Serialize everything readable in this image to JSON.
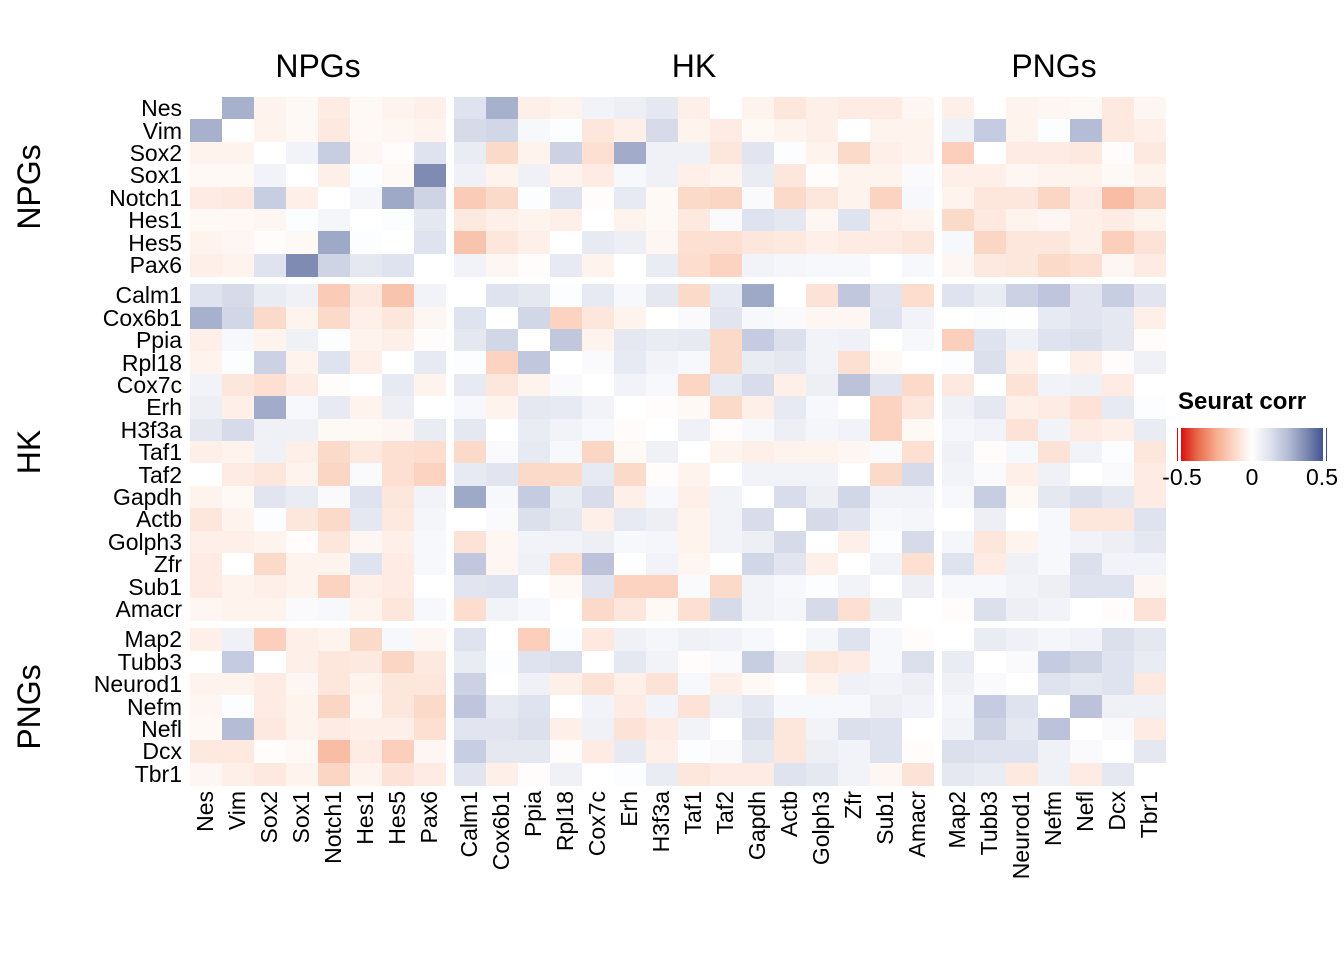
{
  "chart_data": {
    "type": "heatmap",
    "title": "",
    "genes": [
      "Nes",
      "Vim",
      "Sox2",
      "Sox1",
      "Notch1",
      "Hes1",
      "Hes5",
      "Pax6",
      "Calm1",
      "Cox6b1",
      "Ppia",
      "Rpl18",
      "Cox7c",
      "Erh",
      "H3f3a",
      "Taf1",
      "Taf2",
      "Gapdh",
      "Actb",
      "Golph3",
      "Zfr",
      "Sub1",
      "Amacr",
      "Map2",
      "Tubb3",
      "Neurod1",
      "Nefm",
      "Nefl",
      "Dcx",
      "Tbr1"
    ],
    "groups": [
      {
        "label": "NPGs",
        "count": 8
      },
      {
        "label": "HK",
        "count": 15
      },
      {
        "label": "PNGs",
        "count": 7
      }
    ],
    "legend": {
      "title": "Seurat corr",
      "ticks": [
        "-0.5",
        "0",
        "0.5"
      ],
      "tick_values": [
        -0.5,
        0,
        0.5
      ],
      "bar_range": [
        -0.52,
        0.52
      ]
    },
    "color_scale": {
      "anchors": [
        [
          -0.5,
          "#d8090d"
        ],
        [
          -0.375,
          "#e96c4c"
        ],
        [
          -0.25,
          "#f6ab8c"
        ],
        [
          -0.125,
          "#fcd8c7"
        ],
        [
          0,
          "#ffffff"
        ],
        [
          0.125,
          "#dee2ee"
        ],
        [
          0.25,
          "#b4bcd6"
        ],
        [
          0.375,
          "#7d89b0"
        ],
        [
          0.5,
          "#3e5090"
        ]
      ]
    },
    "matrix": [
      [
        0,
        0.28,
        -0.04,
        -0.02,
        -0.06,
        -0.02,
        -0.04,
        -0.05,
        0.12,
        0.28,
        -0.05,
        -0.04,
        0.05,
        0.07,
        0.1,
        -0.05,
        0.0,
        -0.04,
        -0.08,
        -0.05,
        -0.06,
        -0.06,
        -0.03,
        -0.05,
        0.0,
        -0.04,
        -0.03,
        -0.02,
        -0.07,
        -0.03
      ],
      [
        0.28,
        0,
        -0.04,
        -0.02,
        -0.07,
        -0.02,
        -0.03,
        -0.04,
        0.15,
        0.16,
        0.03,
        0.01,
        -0.08,
        -0.05,
        0.15,
        -0.04,
        -0.06,
        -0.02,
        -0.04,
        -0.05,
        0.0,
        -0.04,
        -0.04,
        0.06,
        0.2,
        -0.04,
        0.01,
        0.25,
        -0.07,
        -0.05
      ],
      [
        -0.04,
        -0.04,
        0,
        0.05,
        0.19,
        -0.03,
        -0.01,
        0.12,
        0.08,
        -0.12,
        -0.04,
        0.18,
        -0.1,
        0.29,
        0.06,
        0.06,
        -0.08,
        0.11,
        0.01,
        -0.04,
        -0.12,
        -0.05,
        -0.04,
        -0.15,
        0.0,
        -0.06,
        -0.06,
        -0.07,
        -0.01,
        -0.07
      ],
      [
        -0.02,
        -0.02,
        0.05,
        0,
        -0.05,
        0.01,
        -0.02,
        0.37,
        0.06,
        -0.04,
        0.06,
        -0.04,
        -0.06,
        0.03,
        0.06,
        -0.05,
        -0.04,
        0.08,
        -0.08,
        -0.01,
        -0.04,
        -0.04,
        0.02,
        -0.05,
        -0.05,
        -0.03,
        -0.04,
        -0.04,
        -0.02,
        -0.04
      ],
      [
        -0.06,
        -0.07,
        0.19,
        -0.05,
        0,
        0.04,
        0.3,
        0.17,
        -0.16,
        -0.12,
        0.01,
        0.12,
        -0.01,
        0.09,
        -0.02,
        -0.12,
        -0.13,
        0.02,
        -0.12,
        -0.08,
        -0.04,
        -0.14,
        0.03,
        -0.04,
        -0.08,
        -0.08,
        -0.13,
        -0.06,
        -0.2,
        -0.13
      ],
      [
        -0.02,
        -0.02,
        -0.03,
        0.01,
        0.04,
        0,
        0.01,
        0.1,
        -0.07,
        -0.05,
        -0.04,
        -0.05,
        0.0,
        -0.04,
        -0.02,
        -0.07,
        0.02,
        0.12,
        0.1,
        -0.03,
        0.12,
        -0.05,
        -0.04,
        -0.12,
        -0.07,
        -0.04,
        -0.03,
        -0.05,
        -0.06,
        -0.04
      ],
      [
        -0.04,
        -0.03,
        -0.01,
        -0.02,
        0.3,
        0.01,
        0,
        0.12,
        -0.18,
        -0.08,
        -0.05,
        0.0,
        0.09,
        0.07,
        -0.03,
        -0.1,
        -0.1,
        -0.08,
        -0.07,
        -0.05,
        -0.06,
        -0.06,
        -0.08,
        0.03,
        -0.13,
        -0.08,
        -0.08,
        -0.05,
        -0.15,
        -0.09
      ],
      [
        -0.05,
        -0.04,
        0.12,
        0.37,
        0.17,
        0.1,
        0.12,
        0,
        0.05,
        -0.03,
        -0.01,
        0.09,
        -0.04,
        0.0,
        0.08,
        -0.11,
        -0.14,
        0.05,
        0.04,
        0.03,
        0.03,
        0.0,
        0.03,
        -0.03,
        -0.07,
        -0.08,
        -0.12,
        -0.1,
        -0.03,
        -0.06
      ],
      [
        0.12,
        0.15,
        0.08,
        0.06,
        -0.16,
        -0.07,
        -0.18,
        0.05,
        0,
        0.12,
        0.1,
        0.01,
        0.09,
        0.03,
        0.1,
        -0.12,
        0.09,
        0.3,
        0.0,
        -0.09,
        0.21,
        0.11,
        -0.11,
        0.12,
        0.08,
        0.18,
        0.22,
        0.11,
        0.19,
        0.11
      ],
      [
        0.28,
        0.16,
        -0.12,
        -0.04,
        -0.12,
        -0.05,
        -0.08,
        -0.03,
        0.12,
        0,
        0.16,
        -0.14,
        -0.08,
        -0.04,
        0.0,
        0.02,
        0.11,
        0.03,
        0.02,
        -0.03,
        -0.03,
        0.12,
        0.05,
        0.0,
        0.01,
        0.0,
        0.09,
        0.11,
        0.1,
        -0.05
      ],
      [
        -0.05,
        0.03,
        -0.04,
        0.06,
        0.01,
        -0.04,
        -0.05,
        -0.01,
        0.1,
        0.16,
        0,
        0.21,
        -0.04,
        0.1,
        0.08,
        0.09,
        -0.12,
        0.2,
        0.13,
        0.05,
        0.06,
        0.0,
        0.03,
        -0.15,
        0.12,
        0.06,
        0.12,
        0.13,
        0.1,
        -0.01
      ],
      [
        -0.04,
        0.01,
        0.18,
        -0.04,
        0.12,
        -0.05,
        0.0,
        0.09,
        0.01,
        -0.14,
        0.21,
        0,
        0.02,
        0.09,
        0.05,
        0.03,
        -0.12,
        0.08,
        0.1,
        0.05,
        -0.1,
        -0.02,
        0.0,
        0.01,
        0.13,
        -0.05,
        0.0,
        -0.05,
        -0.01,
        0.06
      ],
      [
        0.05,
        -0.08,
        -0.1,
        -0.06,
        -0.01,
        0.0,
        0.09,
        -0.04,
        0.09,
        -0.08,
        -0.04,
        0.02,
        0,
        0.05,
        0.03,
        -0.13,
        0.09,
        0.14,
        -0.05,
        0.07,
        0.23,
        0.11,
        -0.12,
        -0.07,
        0.0,
        -0.09,
        0.05,
        0.06,
        -0.06,
        0.0
      ],
      [
        0.07,
        -0.05,
        0.29,
        0.03,
        0.09,
        -0.04,
        0.07,
        0.0,
        0.03,
        -0.04,
        0.1,
        0.09,
        0.05,
        0,
        -0.01,
        -0.02,
        -0.12,
        -0.05,
        0.09,
        0.03,
        0.0,
        -0.14,
        -0.08,
        0.06,
        0.1,
        -0.05,
        -0.06,
        -0.09,
        0.09,
        0.01
      ],
      [
        0.1,
        0.15,
        0.06,
        0.06,
        -0.02,
        -0.02,
        -0.03,
        0.08,
        0.1,
        0.0,
        0.08,
        0.05,
        0.03,
        -0.01,
        0,
        0.06,
        -0.01,
        0.03,
        0.07,
        0.04,
        0.05,
        -0.14,
        -0.02,
        0.04,
        0.05,
        -0.09,
        0.05,
        -0.06,
        -0.05,
        0.08
      ],
      [
        -0.05,
        -0.04,
        0.06,
        -0.05,
        -0.12,
        -0.07,
        -0.1,
        -0.11,
        -0.12,
        0.02,
        0.09,
        0.03,
        -0.13,
        -0.02,
        0.06,
        0,
        -0.04,
        -0.05,
        -0.04,
        -0.04,
        -0.03,
        0.02,
        -0.1,
        0.06,
        -0.01,
        0.03,
        -0.09,
        0.05,
        0.01,
        -0.08
      ],
      [
        0.0,
        -0.06,
        -0.08,
        -0.04,
        -0.13,
        0.02,
        -0.1,
        -0.14,
        0.09,
        0.11,
        -0.12,
        -0.12,
        0.09,
        -0.12,
        -0.01,
        -0.04,
        0,
        0.05,
        0.05,
        0.05,
        0.0,
        -0.12,
        0.15,
        0.05,
        0.02,
        -0.05,
        0.06,
        0.0,
        0.02,
        -0.06
      ],
      [
        -0.04,
        -0.02,
        0.11,
        0.08,
        0.02,
        0.12,
        -0.08,
        0.05,
        0.3,
        0.03,
        0.2,
        0.08,
        0.14,
        -0.05,
        0.03,
        -0.05,
        0.05,
        0,
        0.14,
        0.07,
        0.16,
        0.05,
        0.05,
        0.03,
        0.19,
        -0.02,
        0.1,
        0.13,
        0.1,
        -0.06
      ],
      [
        -0.08,
        -0.04,
        0.01,
        -0.08,
        -0.12,
        0.1,
        -0.07,
        0.04,
        0.0,
        0.02,
        0.13,
        0.1,
        -0.05,
        0.09,
        0.07,
        -0.04,
        0.05,
        0.14,
        0,
        0.15,
        0.11,
        0.03,
        0.04,
        0.0,
        0.07,
        0.0,
        0.03,
        -0.08,
        -0.08,
        0.12
      ],
      [
        -0.05,
        -0.05,
        -0.04,
        -0.01,
        -0.08,
        -0.03,
        -0.05,
        0.03,
        -0.09,
        -0.03,
        0.05,
        0.05,
        0.07,
        0.03,
        0.04,
        -0.04,
        0.05,
        0.07,
        0.15,
        0,
        -0.05,
        0.01,
        0.15,
        0.04,
        -0.08,
        -0.04,
        0.03,
        0.05,
        0.07,
        0.1
      ],
      [
        -0.06,
        0.0,
        -0.12,
        -0.04,
        -0.04,
        0.12,
        -0.06,
        0.03,
        0.21,
        -0.03,
        0.06,
        -0.1,
        0.23,
        0.0,
        0.05,
        -0.03,
        0.0,
        0.16,
        0.11,
        -0.05,
        0,
        0.05,
        -0.1,
        0.12,
        -0.06,
        0.06,
        0.03,
        0.13,
        0.05,
        0.05
      ],
      [
        -0.06,
        -0.04,
        -0.05,
        -0.04,
        -0.14,
        -0.05,
        -0.06,
        0.0,
        0.11,
        0.12,
        0.0,
        -0.02,
        0.11,
        -0.14,
        -0.14,
        0.02,
        -0.12,
        0.05,
        0.03,
        0.01,
        0.05,
        0,
        0.07,
        0.03,
        0.03,
        0.05,
        0.07,
        0.12,
        0.12,
        -0.03
      ],
      [
        -0.03,
        -0.04,
        -0.04,
        0.02,
        0.03,
        -0.04,
        -0.08,
        0.03,
        -0.11,
        0.05,
        0.03,
        0.0,
        -0.12,
        -0.08,
        -0.02,
        -0.1,
        0.15,
        0.05,
        0.04,
        0.15,
        -0.1,
        0.07,
        0,
        -0.01,
        0.13,
        0.07,
        0.05,
        0.0,
        -0.01,
        -0.09
      ],
      [
        -0.05,
        0.06,
        -0.15,
        -0.05,
        -0.04,
        -0.12,
        0.03,
        -0.03,
        0.12,
        0.0,
        -0.15,
        0.01,
        -0.07,
        0.06,
        0.04,
        0.06,
        0.05,
        0.03,
        0.0,
        0.04,
        0.12,
        0.03,
        -0.01,
        0,
        0.08,
        0.06,
        0.04,
        0.05,
        0.13,
        0.1
      ],
      [
        0.0,
        0.2,
        0.0,
        -0.05,
        -0.08,
        -0.07,
        -0.13,
        -0.07,
        0.08,
        0.01,
        0.12,
        0.13,
        0.0,
        0.1,
        0.05,
        -0.01,
        0.02,
        0.19,
        0.07,
        -0.08,
        -0.06,
        0.03,
        0.13,
        0.08,
        0,
        0.02,
        0.2,
        0.17,
        0.12,
        0.08
      ],
      [
        -0.04,
        -0.04,
        -0.06,
        -0.03,
        -0.08,
        -0.04,
        -0.08,
        -0.08,
        0.18,
        0.0,
        0.06,
        -0.05,
        -0.09,
        -0.05,
        -0.09,
        0.03,
        -0.05,
        -0.02,
        0.0,
        -0.04,
        0.06,
        0.05,
        0.07,
        0.06,
        0.02,
        0,
        0.12,
        0.1,
        0.12,
        -0.07
      ],
      [
        -0.03,
        0.01,
        -0.06,
        -0.04,
        -0.13,
        -0.03,
        -0.08,
        -0.12,
        0.22,
        0.09,
        0.12,
        0.0,
        0.05,
        -0.06,
        0.05,
        -0.09,
        0.06,
        0.1,
        0.03,
        0.03,
        0.03,
        0.07,
        0.05,
        0.04,
        0.2,
        0.12,
        0,
        0.23,
        0.06,
        0.06
      ],
      [
        -0.02,
        0.25,
        -0.07,
        -0.04,
        -0.06,
        -0.05,
        -0.05,
        -0.1,
        0.11,
        0.11,
        0.13,
        -0.05,
        0.06,
        -0.09,
        -0.06,
        0.05,
        0.0,
        0.13,
        -0.08,
        0.05,
        0.13,
        0.12,
        0.0,
        0.05,
        0.17,
        0.1,
        0.23,
        0,
        0.02,
        -0.06
      ],
      [
        -0.07,
        -0.07,
        -0.01,
        -0.02,
        -0.2,
        -0.06,
        -0.15,
        -0.03,
        0.19,
        0.1,
        0.1,
        -0.01,
        -0.06,
        0.09,
        -0.05,
        0.01,
        0.02,
        0.1,
        -0.08,
        0.07,
        0.05,
        0.12,
        -0.01,
        0.13,
        0.12,
        0.12,
        0.06,
        0.02,
        0,
        0.1
      ],
      [
        -0.03,
        -0.05,
        -0.07,
        -0.04,
        -0.13,
        -0.04,
        -0.09,
        -0.06,
        0.11,
        -0.05,
        -0.01,
        0.06,
        0.0,
        0.01,
        0.08,
        -0.08,
        -0.06,
        -0.06,
        0.12,
        0.1,
        0.05,
        -0.03,
        -0.09,
        0.1,
        0.08,
        -0.07,
        0.06,
        -0.06,
        0.1,
        0
      ]
    ]
  }
}
